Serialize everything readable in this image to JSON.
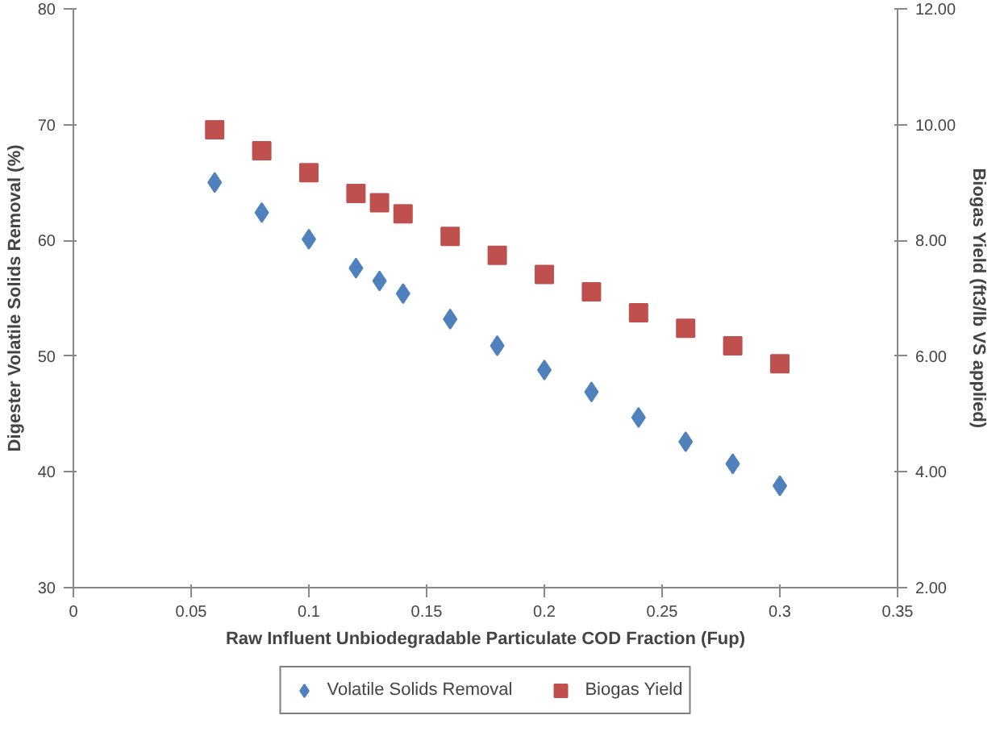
{
  "chart_data": {
    "type": "scatter",
    "xlabel": "Raw Influent Unbiodegradable Particulate COD Fraction (Fup)",
    "ylabel": "Digester Volatile Solids Removal (%)",
    "y2label": "Biogas Yield (ft3/lb VS applied)",
    "x": [
      0.06,
      0.08,
      0.1,
      0.12,
      0.13,
      0.14,
      0.16,
      0.18,
      0.2,
      0.22,
      0.24,
      0.26,
      0.28,
      0.3
    ],
    "series": [
      {
        "name": "Volatile Solids Removal",
        "color": "#4f81bd",
        "marker": "diamond",
        "values": [
          65.0,
          62.4,
          60.1,
          57.6,
          56.5,
          55.4,
          53.2,
          50.9,
          48.8,
          46.9,
          44.7,
          42.6,
          40.7,
          38.8
        ]
      },
      {
        "name": "Biogas Yield",
        "color": "#c0504d",
        "marker": "square",
        "axis": "y2",
        "values": [
          9.91,
          9.55,
          9.17,
          8.81,
          8.65,
          8.46,
          8.07,
          7.74,
          7.41,
          7.11,
          6.75,
          6.48,
          6.18,
          5.87
        ]
      }
    ],
    "xlim": [
      0,
      0.35
    ],
    "xticks": [
      0,
      0.05,
      0.1,
      0.15,
      0.2,
      0.25,
      0.3,
      0.35
    ],
    "ylim": [
      30,
      80
    ],
    "yticks": [
      30,
      40,
      50,
      60,
      70,
      80
    ],
    "y2lim": [
      2,
      12
    ],
    "y2ticks": [
      {
        "value": 2,
        "label": "2.00"
      },
      {
        "value": 4,
        "label": "4.00"
      },
      {
        "value": 6,
        "label": "6.00"
      },
      {
        "value": 8,
        "label": "8.00"
      },
      {
        "value": 10,
        "label": "10.00"
      },
      {
        "value": 12,
        "label": "12.00"
      }
    ],
    "grid": false,
    "legend": "bottom"
  }
}
